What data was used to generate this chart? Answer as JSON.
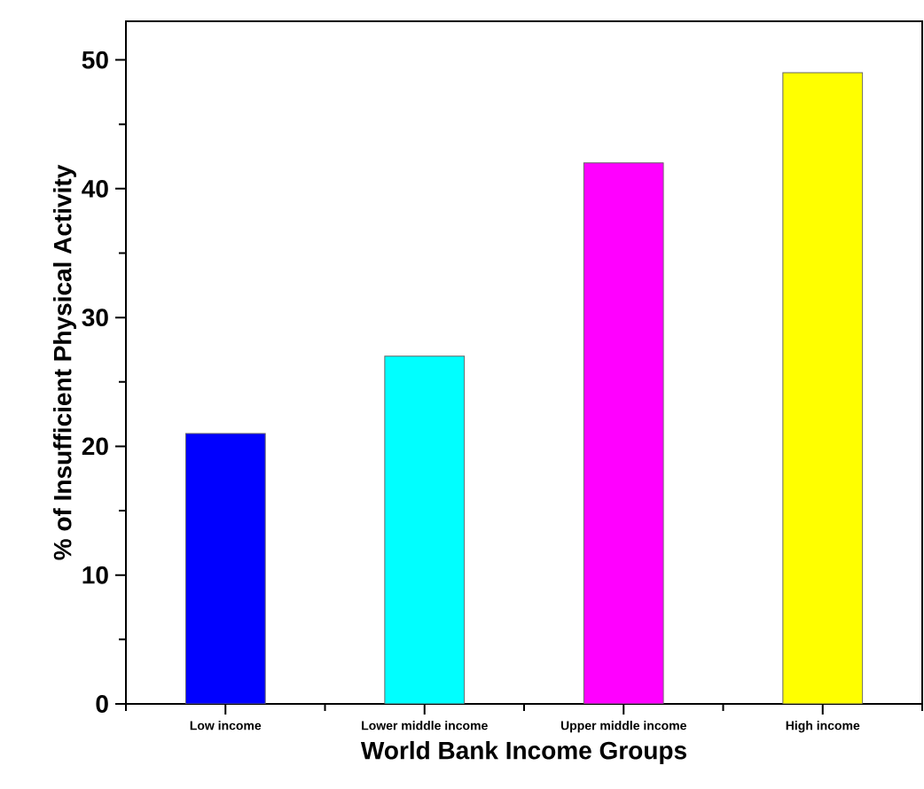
{
  "chart_data": {
    "type": "bar",
    "xlabel": "World Bank Income Groups",
    "ylabel": "% of Insufficient Physical Activity",
    "categories": [
      "Low income",
      "Lower middle income",
      "Upper middle income",
      "High income"
    ],
    "values": [
      21,
      27,
      42,
      49
    ],
    "colors": [
      "#0000ff",
      "#00ffff",
      "#ff00ff",
      "#ffff00"
    ],
    "ylim": [
      0,
      53
    ],
    "yticks": [
      0,
      10,
      20,
      30,
      40,
      50
    ],
    "grid": false
  }
}
